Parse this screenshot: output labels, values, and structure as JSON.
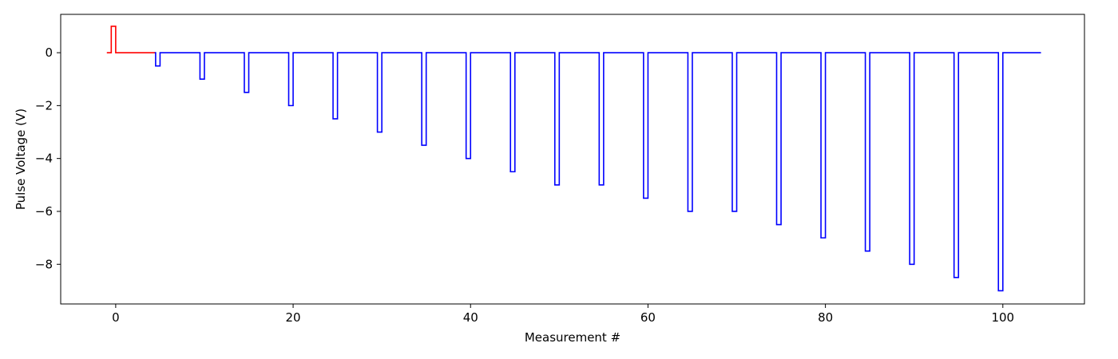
{
  "chart_data": {
    "type": "line",
    "title": "",
    "xlabel": "Measurement #",
    "ylabel": "Pulse Voltage (V)",
    "xlim": [
      -6.2,
      109.2
    ],
    "ylim": [
      -9.5,
      1.45
    ],
    "x_ticks": [
      0,
      20,
      40,
      60,
      80,
      100
    ],
    "y_ticks": [
      0,
      -2,
      -4,
      -6,
      -8
    ],
    "grid": false,
    "legend": "none",
    "series": [
      {
        "color": "#ff0000",
        "step": "post",
        "x": [
          -1,
          -0.5,
          0,
          4.5
        ],
        "y": [
          0,
          1,
          0,
          0
        ]
      },
      {
        "color": "#0000ff",
        "step": "post",
        "x": [
          4.4,
          4.5,
          5,
          9.5,
          10,
          14.5,
          15,
          19.5,
          20,
          24.5,
          25,
          29.5,
          30,
          34.5,
          35,
          39.5,
          40,
          44.5,
          45,
          49.5,
          50,
          54.5,
          55,
          59.5,
          60,
          64.5,
          65,
          69.5,
          70,
          74.5,
          75,
          79.5,
          80,
          84.5,
          85,
          89.5,
          90,
          94.5,
          95,
          99.5,
          100,
          104.3
        ],
        "y": [
          0,
          -0.5,
          0,
          -1,
          0,
          -1.5,
          0,
          -2,
          0,
          -2.5,
          0,
          -3,
          0,
          -3.5,
          0,
          -4,
          0,
          -4.5,
          0,
          -5,
          0,
          -5,
          0,
          -5.5,
          0,
          -6,
          0,
          -6,
          0,
          -6.5,
          0,
          -7,
          0,
          -7.5,
          0,
          -8,
          0,
          -8.5,
          0,
          -9,
          0,
          0
        ]
      }
    ]
  }
}
